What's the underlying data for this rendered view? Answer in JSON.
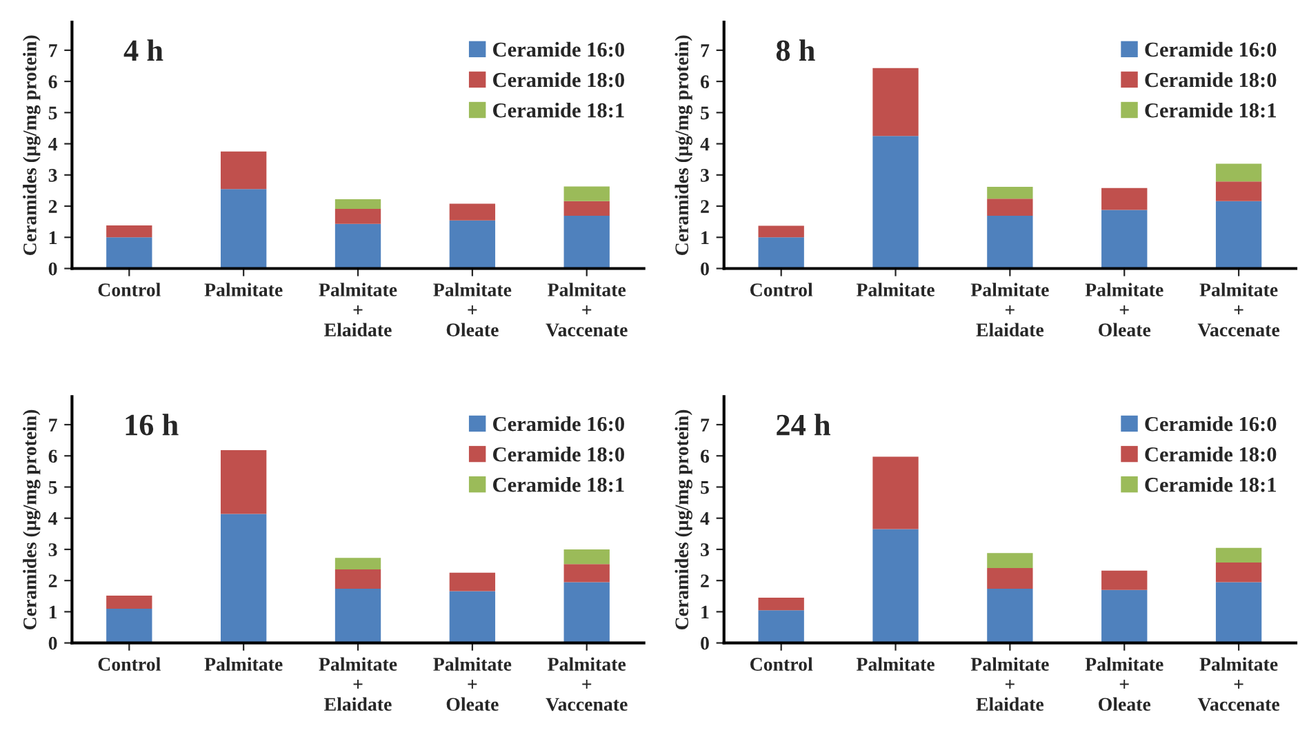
{
  "chart_data": [
    {
      "type": "bar",
      "title": "4 h",
      "ylabel": "Ceramides (µg/mg protein)",
      "categories": [
        "Control",
        "Palmitate",
        "Palmitate\n+\nElaidate",
        "Palmitate\n+\nOleate",
        "Palmitate\n+\nVaccenate"
      ],
      "stacked": true,
      "ylim": [
        0,
        7.9
      ],
      "yticks": [
        0,
        1,
        2,
        3,
        4,
        5,
        6,
        7
      ],
      "legend": "top right",
      "grid": false,
      "series": [
        {
          "name": "Ceramide 16:0",
          "color": "#4f81bd",
          "values": [
            1.0,
            2.55,
            1.43,
            1.54,
            1.69
          ]
        },
        {
          "name": "Ceramide 18:0",
          "color": "#c0504d",
          "values": [
            0.38,
            1.2,
            0.48,
            0.54,
            0.47
          ]
        },
        {
          "name": "Ceramide 18:1",
          "color": "#9bbb59",
          "values": [
            0,
            0,
            0.31,
            0,
            0.47
          ]
        }
      ]
    },
    {
      "type": "bar",
      "title": "8 h",
      "ylabel": "Ceramides (µg/mg protein)",
      "categories": [
        "Control",
        "Palmitate",
        "Palmitate\n+\nElaidate",
        "Palmitate\n+\nOleate",
        "Palmitate\n+\nVaccenate"
      ],
      "stacked": true,
      "ylim": [
        0,
        7.9
      ],
      "yticks": [
        0,
        1,
        2,
        3,
        4,
        5,
        6,
        7
      ],
      "legend": "top right",
      "grid": false,
      "series": [
        {
          "name": "Ceramide 16:0",
          "color": "#4f81bd",
          "values": [
            1.0,
            4.25,
            1.69,
            1.88,
            2.16
          ]
        },
        {
          "name": "Ceramide 18:0",
          "color": "#c0504d",
          "values": [
            0.37,
            2.18,
            0.55,
            0.7,
            0.63
          ]
        },
        {
          "name": "Ceramide 18:1",
          "color": "#9bbb59",
          "values": [
            0,
            0,
            0.38,
            0,
            0.57
          ]
        }
      ]
    },
    {
      "type": "bar",
      "title": "16 h",
      "ylabel": "Ceramides (µg/mg protein)",
      "categories": [
        "Control",
        "Palmitate",
        "Palmitate\n+\nElaidate",
        "Palmitate\n+\nOleate",
        "Palmitate\n+\nVaccenate"
      ],
      "stacked": true,
      "ylim": [
        0,
        7.9
      ],
      "yticks": [
        0,
        1,
        2,
        3,
        4,
        5,
        6,
        7
      ],
      "legend": "top right",
      "grid": false,
      "series": [
        {
          "name": "Ceramide 16:0",
          "color": "#4f81bd",
          "values": [
            1.1,
            4.14,
            1.74,
            1.66,
            1.95
          ]
        },
        {
          "name": "Ceramide 18:0",
          "color": "#c0504d",
          "values": [
            0.42,
            2.04,
            0.62,
            0.59,
            0.58
          ]
        },
        {
          "name": "Ceramide 18:1",
          "color": "#9bbb59",
          "values": [
            0,
            0,
            0.37,
            0,
            0.47
          ]
        }
      ]
    },
    {
      "type": "bar",
      "title": "24 h",
      "ylabel": "Ceramides (µg/mg protein)",
      "categories": [
        "Control",
        "Palmitate",
        "Palmitate\n+\nElaidate",
        "Palmitate\n+\nOleate",
        "Palmitate\n+\nVaccenate"
      ],
      "stacked": true,
      "ylim": [
        0,
        7.9
      ],
      "yticks": [
        0,
        1,
        2,
        3,
        4,
        5,
        6,
        7
      ],
      "legend": "top right",
      "grid": false,
      "series": [
        {
          "name": "Ceramide 16:0",
          "color": "#4f81bd",
          "values": [
            1.05,
            3.65,
            1.74,
            1.7,
            1.95
          ]
        },
        {
          "name": "Ceramide 18:0",
          "color": "#c0504d",
          "values": [
            0.4,
            2.32,
            0.66,
            0.62,
            0.63
          ]
        },
        {
          "name": "Ceramide 18:1",
          "color": "#9bbb59",
          "values": [
            0,
            0,
            0.48,
            0,
            0.47
          ]
        }
      ]
    }
  ]
}
